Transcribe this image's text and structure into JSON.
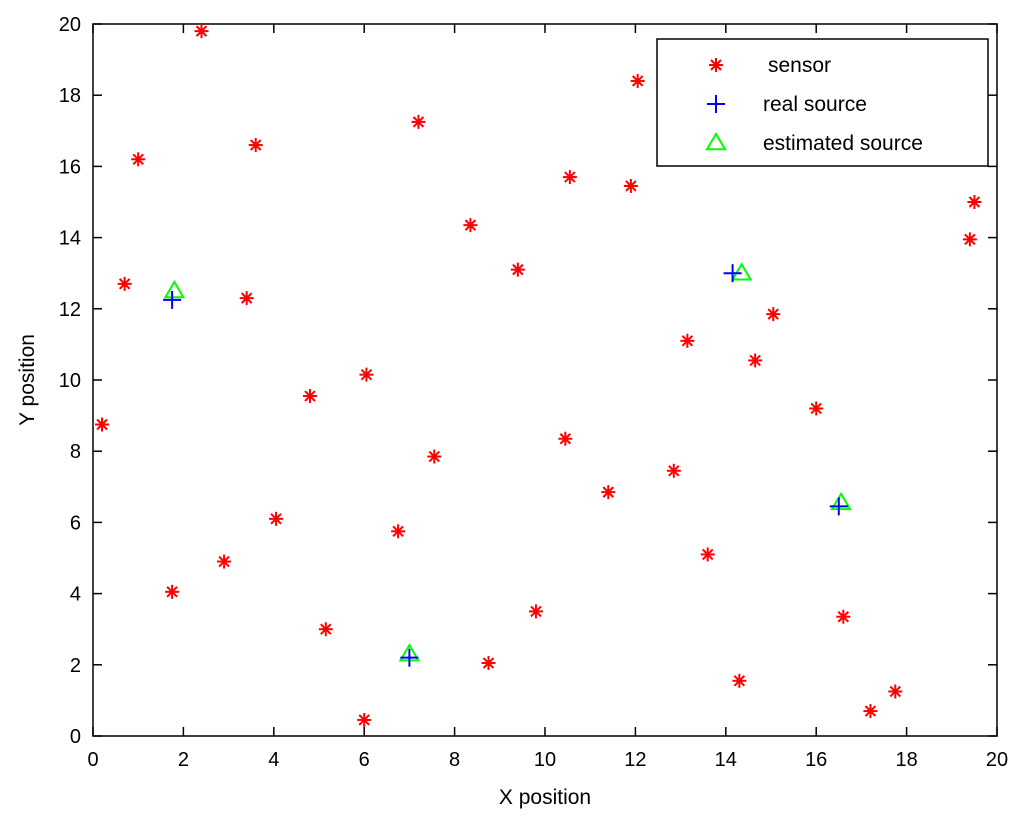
{
  "chart_data": {
    "type": "scatter",
    "xlabel": "X position",
    "ylabel": "Y position",
    "xlim": [
      0,
      20
    ],
    "ylim": [
      0,
      20
    ],
    "xticks": [
      0,
      2,
      4,
      6,
      8,
      10,
      12,
      14,
      16,
      18,
      20
    ],
    "yticks": [
      0,
      2,
      4,
      6,
      8,
      10,
      12,
      14,
      16,
      18,
      20
    ],
    "grid": false,
    "legend_position": "top-right",
    "series": [
      {
        "name": "sensor",
        "marker": "asterisk",
        "color": "#ff0000",
        "points": [
          [
            0.2,
            8.75
          ],
          [
            0.7,
            12.7
          ],
          [
            1.0,
            16.2
          ],
          [
            1.75,
            4.05
          ],
          [
            2.4,
            19.8
          ],
          [
            2.9,
            4.9
          ],
          [
            3.4,
            12.3
          ],
          [
            3.6,
            16.6
          ],
          [
            4.05,
            6.1
          ],
          [
            4.8,
            9.55
          ],
          [
            5.15,
            3.0
          ],
          [
            6.0,
            0.45
          ],
          [
            6.05,
            10.15
          ],
          [
            6.75,
            5.75
          ],
          [
            7.2,
            17.25
          ],
          [
            7.55,
            7.85
          ],
          [
            8.35,
            14.35
          ],
          [
            8.75,
            2.05
          ],
          [
            9.4,
            13.1
          ],
          [
            9.8,
            3.5
          ],
          [
            10.45,
            8.35
          ],
          [
            10.55,
            15.7
          ],
          [
            11.4,
            6.85
          ],
          [
            11.9,
            15.45
          ],
          [
            12.05,
            18.4
          ],
          [
            12.85,
            7.45
          ],
          [
            13.15,
            11.1
          ],
          [
            13.6,
            5.1
          ],
          [
            14.3,
            1.55
          ],
          [
            14.65,
            10.55
          ],
          [
            15.05,
            11.85
          ],
          [
            16.0,
            9.2
          ],
          [
            16.6,
            3.35
          ],
          [
            17.2,
            0.7
          ],
          [
            17.75,
            1.25
          ],
          [
            19.4,
            13.95
          ],
          [
            19.5,
            15.0
          ]
        ]
      },
      {
        "name": "real source",
        "marker": "plus",
        "color": "#0000ff",
        "points": [
          [
            1.75,
            12.25
          ],
          [
            7.0,
            2.2
          ],
          [
            14.15,
            13.0
          ],
          [
            16.5,
            6.45
          ]
        ]
      },
      {
        "name": "estimated source",
        "marker": "triangle",
        "color": "#00ff00",
        "points": [
          [
            1.8,
            12.5
          ],
          [
            7.0,
            2.3
          ],
          [
            14.35,
            13.0
          ],
          [
            16.55,
            6.55
          ]
        ]
      }
    ]
  }
}
